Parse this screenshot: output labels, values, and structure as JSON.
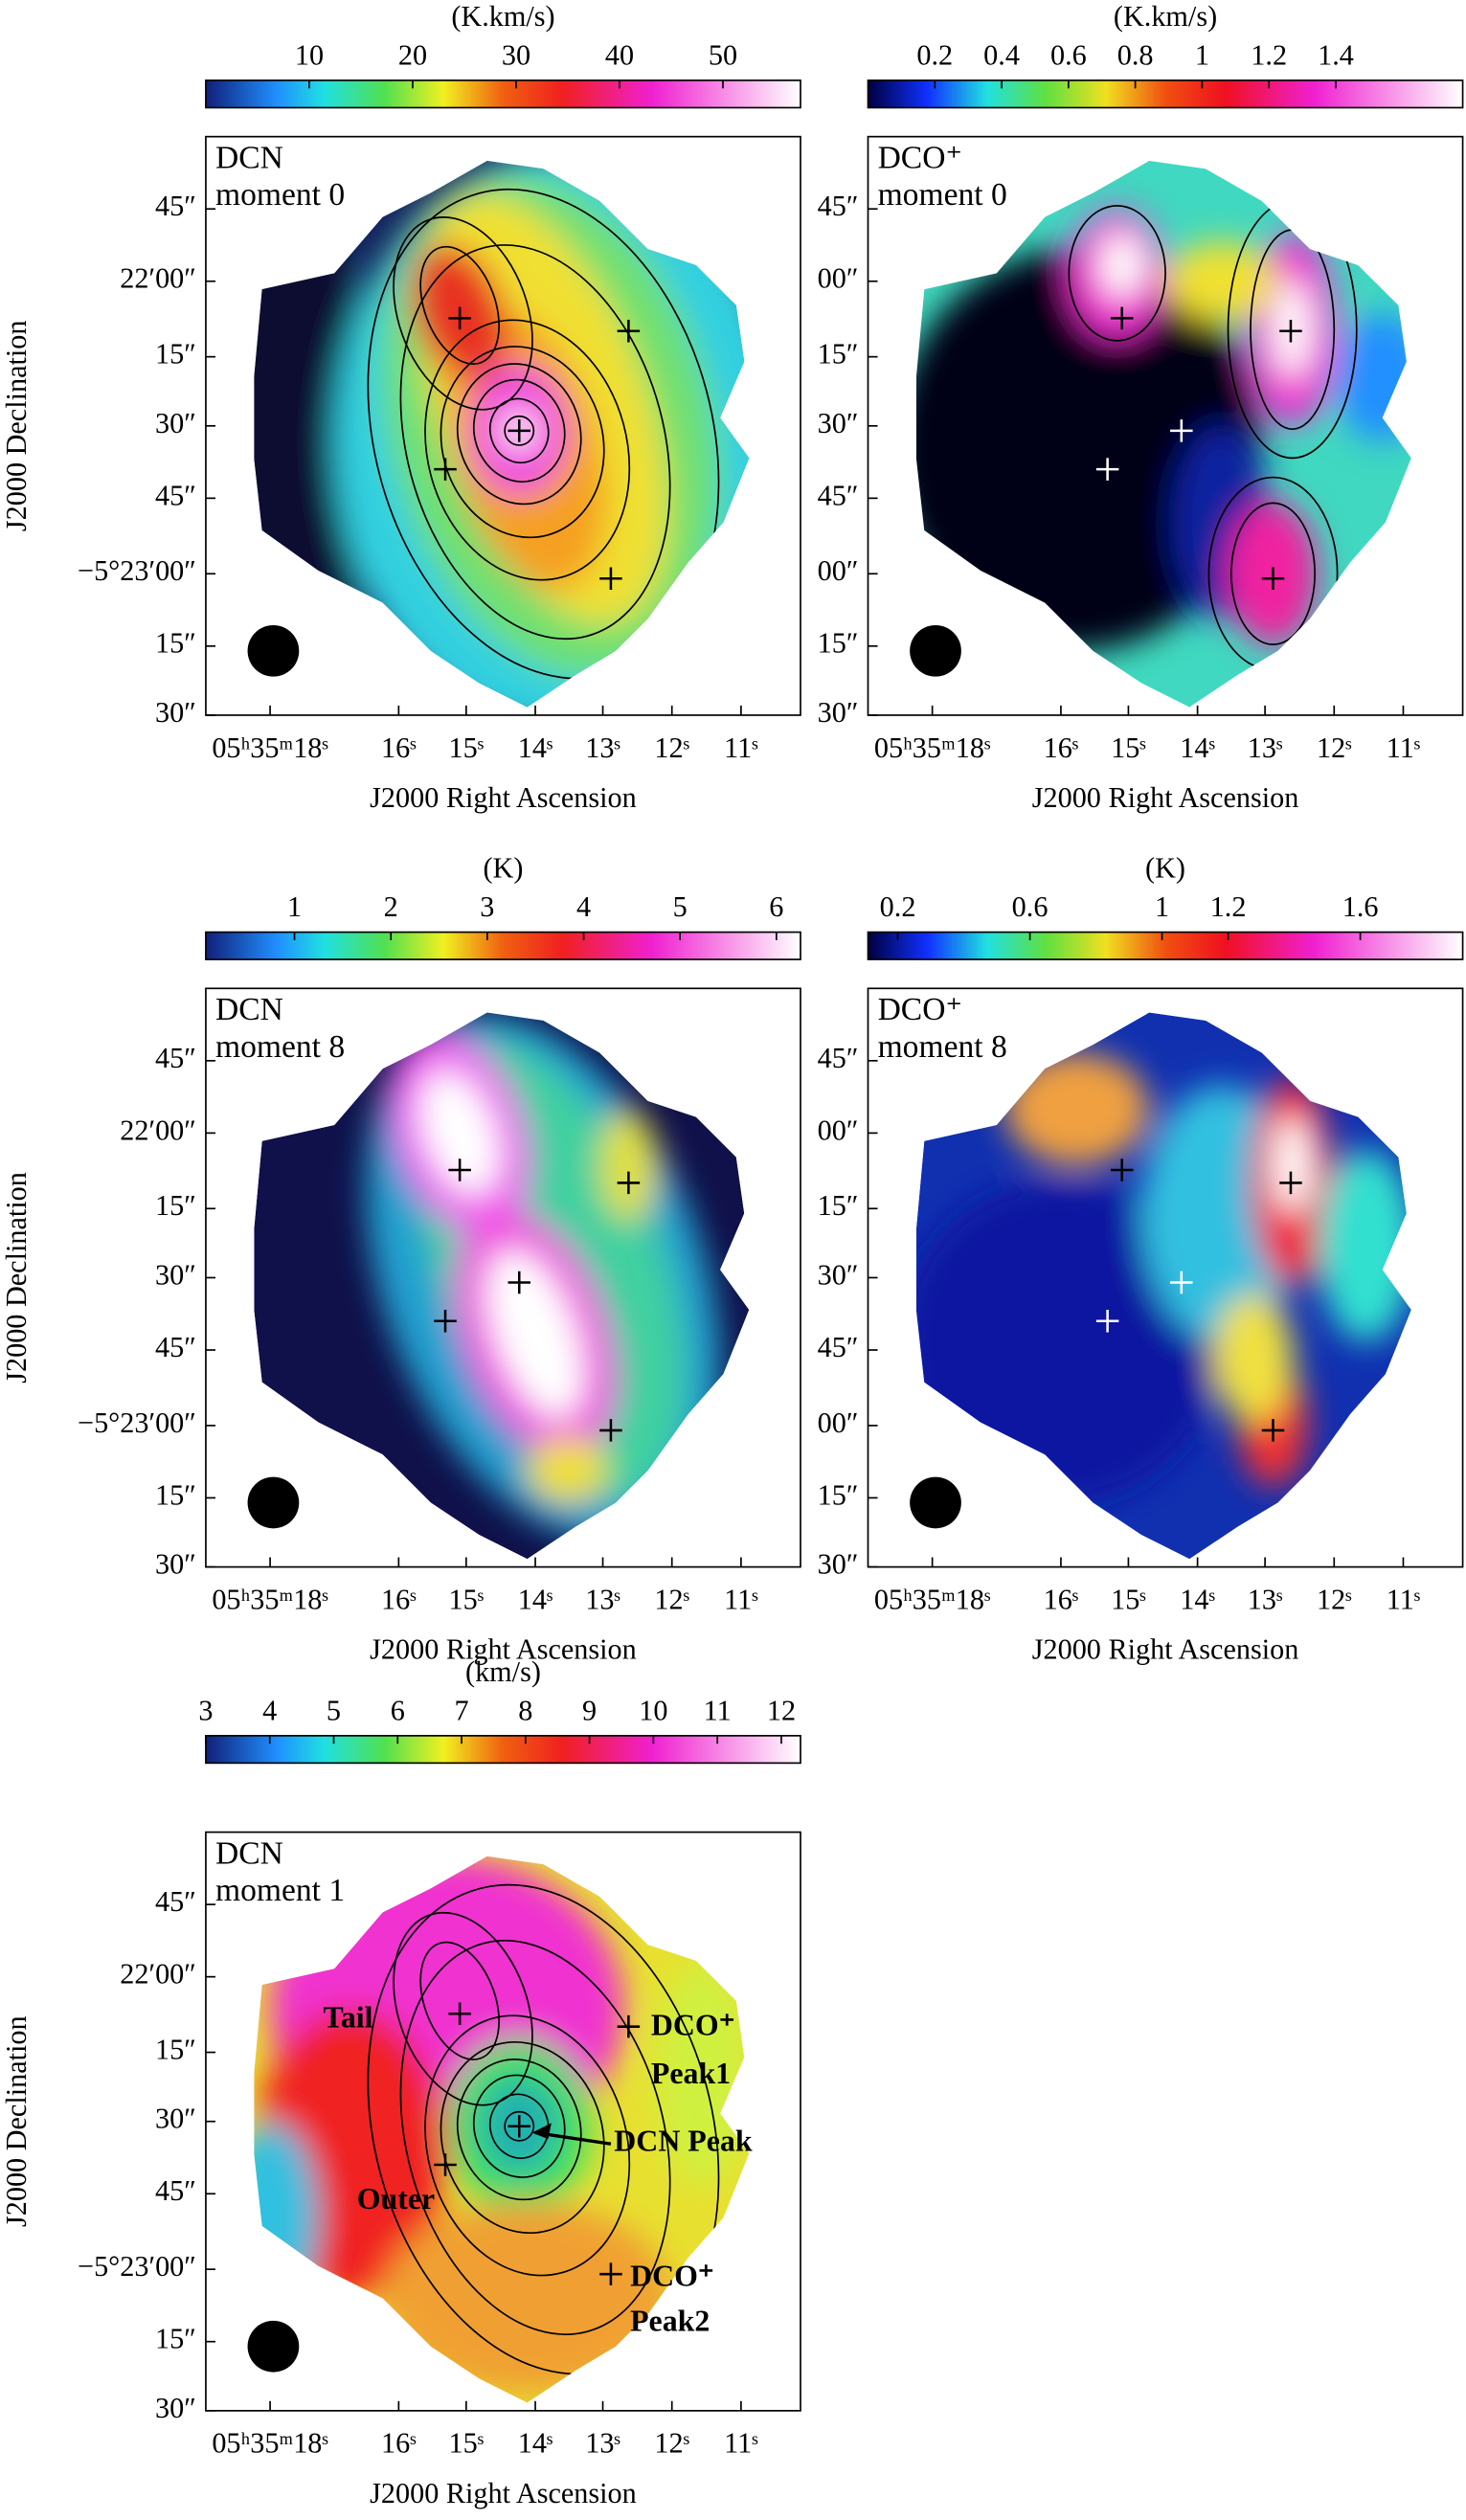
{
  "axis_titles": {
    "x": "J2000 Right Ascension",
    "y": "J2000 Declination"
  },
  "ra_ticks": [
    "05ʰ35ᵐ18ˢ",
    "16ˢ",
    "15ˢ",
    "14ˢ",
    "13ˢ",
    "12ˢ",
    "11ˢ"
  ],
  "panels": [
    {
      "molecule": "DCN",
      "moment": "moment 0",
      "colorbar": {
        "unit": "(K.km/s)",
        "lim": [
          0,
          57.5
        ],
        "ticks": [
          10,
          20,
          30,
          40,
          50
        ]
      },
      "dec_ticks": [
        "45″",
        "22′00″",
        "15″",
        "30″",
        "45″",
        "−5°23′00″",
        "15″",
        "30″"
      ]
    },
    {
      "molecule": "DCO⁺",
      "moment": "moment 0",
      "colorbar": {
        "unit": "(K.km/s)",
        "lim": [
          0,
          1.78
        ],
        "ticks": [
          0.2,
          0.4,
          0.6,
          0.8,
          1,
          1.2,
          1.4
        ]
      },
      "dec_ticks": [
        "45″",
        "00″",
        "15″",
        "30″",
        "45″",
        "00″",
        "15″",
        "30″"
      ]
    },
    {
      "molecule": "DCN",
      "moment": "moment 8",
      "colorbar": {
        "unit": "(K)",
        "lim": [
          0.08,
          6.25
        ],
        "ticks": [
          1,
          2,
          3,
          4,
          5,
          6
        ]
      },
      "dec_ticks": [
        "45″",
        "22′00″",
        "15″",
        "30″",
        "45″",
        "−5°23′00″",
        "15″",
        "30″"
      ]
    },
    {
      "molecule": "DCO⁺",
      "moment": "moment 8",
      "colorbar": {
        "unit": "(K)",
        "lim": [
          0.11,
          1.91
        ],
        "ticks": [
          0.2,
          0.6,
          1,
          1.2,
          1.6
        ]
      },
      "dec_ticks": [
        "45″",
        "00″",
        "15″",
        "30″",
        "45″",
        "00″",
        "15″",
        "30″"
      ]
    },
    {
      "molecule": "DCN",
      "moment": "moment 1",
      "colorbar": {
        "unit": "(km/s)",
        "lim": [
          3,
          12.3
        ],
        "ticks": [
          3,
          4,
          5,
          6,
          7,
          8,
          9,
          10,
          11,
          12
        ]
      },
      "dec_ticks": [
        "45″",
        "22′00″",
        "15″",
        "30″",
        "45″",
        "−5°23′00″",
        "15″",
        "30″"
      ],
      "annotations": [
        "Tail",
        "DCO⁺",
        "Peak1",
        "DCN Peak",
        "Outer",
        "DCO⁺",
        "Peak2"
      ]
    }
  ]
}
